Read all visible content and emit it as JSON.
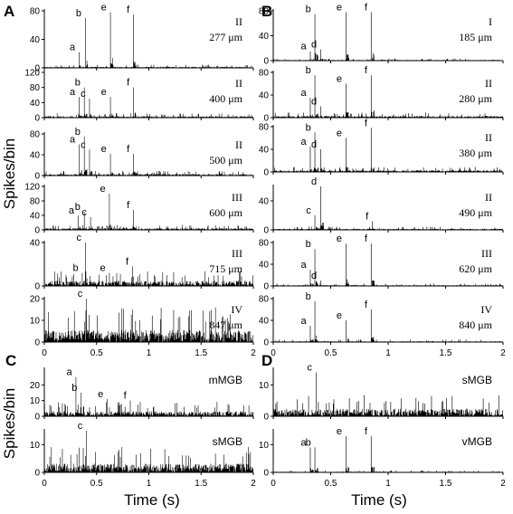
{
  "figure": {
    "y_axis_title": "Spikes/bin",
    "x_axis_title": "Time (s)",
    "x_ticks": [
      "0",
      "0.5",
      "1",
      "1.5",
      "2"
    ],
    "xlim": [
      0,
      2
    ]
  },
  "panels": [
    {
      "letter": "A",
      "subplots": [
        0,
        1,
        2,
        3,
        4,
        5
      ]
    },
    {
      "letter": "B",
      "subplots": [
        6,
        7,
        8,
        9,
        10,
        11
      ]
    },
    {
      "letter": "C",
      "subplots": [
        12,
        13
      ]
    },
    {
      "letter": "D",
      "subplots": [
        14,
        15
      ]
    }
  ],
  "chart_data": [
    {
      "type": "bar",
      "panel": "A",
      "label_line1": "II",
      "label_line2": "277 μm",
      "ylim": [
        0,
        80
      ],
      "y_ticks": [
        0,
        40,
        80
      ],
      "baseline": 1.0,
      "peaks": [
        {
          "label": "a",
          "x": 0.33,
          "y": 22
        },
        {
          "label": "b",
          "x": 0.39,
          "y": 70
        },
        {
          "label": "e",
          "x": 0.63,
          "y": 78
        },
        {
          "label": "f",
          "x": 0.85,
          "y": 75
        }
      ]
    },
    {
      "type": "bar",
      "panel": "A",
      "label_line1": "II",
      "label_line2": "400 μm",
      "ylim": [
        0,
        120
      ],
      "y_ticks": [
        0,
        40,
        80,
        120
      ],
      "baseline": 2.5,
      "peaks": [
        {
          "label": "a",
          "x": 0.33,
          "y": 55
        },
        {
          "label": "b",
          "x": 0.38,
          "y": 80
        },
        {
          "label": "c",
          "x": 0.43,
          "y": 50
        },
        {
          "label": "e",
          "x": 0.63,
          "y": 55
        },
        {
          "label": "f",
          "x": 0.85,
          "y": 80
        }
      ]
    },
    {
      "type": "bar",
      "panel": "A",
      "label_line1": "II",
      "label_line2": "500 μm",
      "ylim": [
        0,
        80
      ],
      "y_ticks": [
        0,
        40,
        80
      ],
      "baseline": 2.0,
      "peaks": [
        {
          "label": "a",
          "x": 0.33,
          "y": 60
        },
        {
          "label": "b",
          "x": 0.38,
          "y": 75
        },
        {
          "label": "c",
          "x": 0.43,
          "y": 50
        },
        {
          "label": "e",
          "x": 0.63,
          "y": 42
        },
        {
          "label": "f",
          "x": 0.85,
          "y": 42
        }
      ]
    },
    {
      "type": "bar",
      "panel": "A",
      "label_line1": "III",
      "label_line2": "600 μm",
      "ylim": [
        0,
        120
      ],
      "y_ticks": [
        0,
        40,
        80,
        120
      ],
      "baseline": 3.0,
      "peaks": [
        {
          "label": "a",
          "x": 0.32,
          "y": 40
        },
        {
          "label": "b",
          "x": 0.38,
          "y": 50
        },
        {
          "label": "c",
          "x": 0.44,
          "y": 35
        },
        {
          "label": "e",
          "x": 0.62,
          "y": 100
        },
        {
          "label": "f",
          "x": 0.85,
          "y": 55
        }
      ]
    },
    {
      "type": "bar",
      "panel": "A",
      "label_line1": "III",
      "label_line2": "715 μm",
      "ylim": [
        0,
        40
      ],
      "y_ticks": [
        0,
        40
      ],
      "baseline": 3.0,
      "peaks": [
        {
          "label": "b",
          "x": 0.36,
          "y": 12
        },
        {
          "label": "c",
          "x": 0.39,
          "y": 42
        },
        {
          "label": "e",
          "x": 0.62,
          "y": 12
        },
        {
          "label": "f",
          "x": 0.84,
          "y": 18
        }
      ]
    },
    {
      "type": "bar",
      "panel": "A",
      "label_line1": "IV",
      "label_line2": "847 μm",
      "ylim": [
        0,
        20
      ],
      "y_ticks": [
        0,
        10,
        20
      ],
      "baseline": 3.5,
      "peaks": [
        {
          "label": "c",
          "x": 0.4,
          "y": 20
        }
      ]
    },
    {
      "type": "bar",
      "panel": "B",
      "label_line1": "I",
      "label_line2": "185 μm",
      "ylim": [
        0,
        80
      ],
      "y_ticks": [
        0,
        40,
        80
      ],
      "baseline": 0.8,
      "peaks": [
        {
          "label": "a",
          "x": 0.32,
          "y": 15
        },
        {
          "label": "b",
          "x": 0.36,
          "y": 75
        },
        {
          "label": "d",
          "x": 0.41,
          "y": 18
        },
        {
          "label": "e",
          "x": 0.63,
          "y": 78
        },
        {
          "label": "f",
          "x": 0.85,
          "y": 78
        }
      ]
    },
    {
      "type": "bar",
      "panel": "B",
      "label_line1": "II",
      "label_line2": "280 μm",
      "ylim": [
        0,
        80
      ],
      "y_ticks": [
        0,
        40,
        80
      ],
      "baseline": 2.0,
      "peaks": [
        {
          "label": "a",
          "x": 0.32,
          "y": 35
        },
        {
          "label": "b",
          "x": 0.36,
          "y": 75
        },
        {
          "label": "d",
          "x": 0.41,
          "y": 20
        },
        {
          "label": "e",
          "x": 0.63,
          "y": 60
        },
        {
          "label": "f",
          "x": 0.85,
          "y": 75
        }
      ]
    },
    {
      "type": "bar",
      "panel": "B",
      "label_line1": "II",
      "label_line2": "380 μm",
      "ylim": [
        0,
        80
      ],
      "y_ticks": [
        0,
        40,
        80
      ],
      "baseline": 2.0,
      "peaks": [
        {
          "label": "a",
          "x": 0.32,
          "y": 45
        },
        {
          "label": "b",
          "x": 0.36,
          "y": 70
        },
        {
          "label": "d",
          "x": 0.41,
          "y": 40
        },
        {
          "label": "e",
          "x": 0.63,
          "y": 60
        },
        {
          "label": "f",
          "x": 0.85,
          "y": 78
        }
      ]
    },
    {
      "type": "bar",
      "panel": "B",
      "label_line1": "II",
      "label_line2": "490 μm",
      "ylim": [
        0,
        60
      ],
      "y_ticks": [
        0,
        40
      ],
      "baseline": 1.0,
      "peaks": [
        {
          "label": "c",
          "x": 0.36,
          "y": 20
        },
        {
          "label": "d",
          "x": 0.41,
          "y": 60
        },
        {
          "label": "f",
          "x": 0.86,
          "y": 12
        }
      ]
    },
    {
      "type": "bar",
      "panel": "B",
      "label_line1": "III",
      "label_line2": "620 μm",
      "ylim": [
        0,
        80
      ],
      "y_ticks": [
        0,
        40,
        80
      ],
      "baseline": 1.0,
      "peaks": [
        {
          "label": "a",
          "x": 0.32,
          "y": 30
        },
        {
          "label": "b",
          "x": 0.36,
          "y": 68
        },
        {
          "label": "d",
          "x": 0.41,
          "y": 10
        },
        {
          "label": "e",
          "x": 0.63,
          "y": 78
        },
        {
          "label": "f",
          "x": 0.85,
          "y": 78
        }
      ]
    },
    {
      "type": "bar",
      "panel": "B",
      "label_line1": "IV",
      "label_line2": "840 μm",
      "ylim": [
        0,
        80
      ],
      "y_ticks": [
        0,
        40,
        80
      ],
      "baseline": 1.0,
      "peaks": [
        {
          "label": "a",
          "x": 0.32,
          "y": 30
        },
        {
          "label": "b",
          "x": 0.36,
          "y": 75
        },
        {
          "label": "e",
          "x": 0.63,
          "y": 40
        },
        {
          "label": "f",
          "x": 0.85,
          "y": 60
        }
      ]
    },
    {
      "type": "bar",
      "panel": "C",
      "label_line1": "mMGB",
      "label_line2": "",
      "ylim": [
        0,
        30
      ],
      "y_ticks": [
        0,
        10,
        20
      ],
      "baseline": 2.0,
      "peaks": [
        {
          "label": "a",
          "x": 0.3,
          "y": 25
        },
        {
          "label": "b",
          "x": 0.35,
          "y": 15
        },
        {
          "label": "e",
          "x": 0.6,
          "y": 11
        },
        {
          "label": "f",
          "x": 0.82,
          "y": 10
        }
      ]
    },
    {
      "type": "bar",
      "panel": "C",
      "label_line1": "sMGB",
      "label_line2": "",
      "ylim": [
        0,
        15
      ],
      "y_ticks": [
        0,
        10
      ],
      "baseline": 2.0,
      "peaks": [
        {
          "label": "c",
          "x": 0.4,
          "y": 15
        }
      ]
    },
    {
      "type": "bar",
      "panel": "D",
      "label_line1": "sMGB",
      "label_line2": "",
      "ylim": [
        0,
        15
      ],
      "y_ticks": [
        0,
        10
      ],
      "baseline": 1.5,
      "peaks": [
        {
          "label": "c",
          "x": 0.37,
          "y": 14
        }
      ]
    },
    {
      "type": "bar",
      "panel": "D",
      "label_line1": "vMGB",
      "label_line2": "",
      "ylim": [
        0,
        15
      ],
      "y_ticks": [
        0,
        10
      ],
      "baseline": 0.15,
      "peaks": [
        {
          "label": "a",
          "x": 0.32,
          "y": 9
        },
        {
          "label": "b",
          "x": 0.36,
          "y": 9
        },
        {
          "label": "e",
          "x": 0.63,
          "y": 13
        },
        {
          "label": "f",
          "x": 0.85,
          "y": 13
        }
      ]
    }
  ]
}
